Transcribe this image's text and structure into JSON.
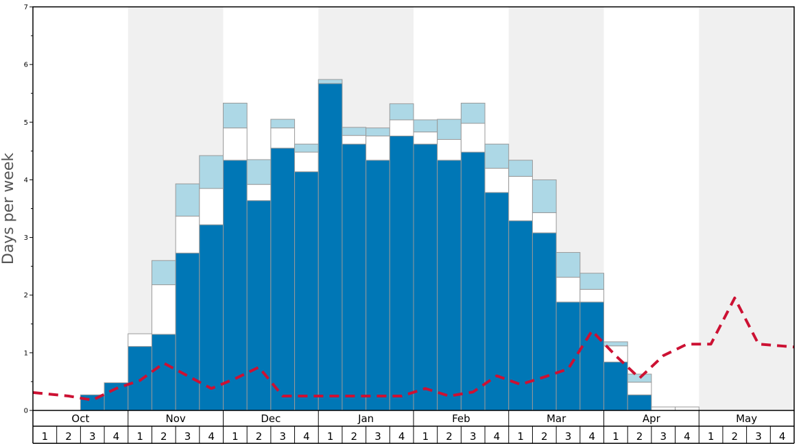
{
  "chart_data": {
    "type": "bar",
    "title": "",
    "ylabel": "Days per week",
    "xlabel": "",
    "ylim": [
      0,
      7
    ],
    "yticks": [
      0,
      1,
      2,
      3,
      4,
      5,
      6,
      7
    ],
    "stacked": true,
    "months": [
      "Oct",
      "Nov",
      "Dec",
      "Jan",
      "Feb",
      "Mar",
      "Apr",
      "May"
    ],
    "weeks": [
      "1",
      "2",
      "3",
      "4"
    ],
    "shaded_months": [
      "Nov",
      "Jan",
      "Mar",
      "May"
    ],
    "series": [
      {
        "name": "",
        "color": "#0077b6",
        "values": [
          0,
          0,
          0.27,
          0.48,
          1.11,
          1.32,
          2.73,
          3.22,
          4.34,
          3.64,
          4.55,
          4.14,
          5.67,
          4.62,
          4.34,
          4.76,
          4.62,
          4.34,
          4.48,
          3.78,
          3.29,
          3.08,
          1.88,
          1.88,
          0.84,
          0.27,
          0,
          0,
          0,
          0,
          0,
          0
        ]
      },
      {
        "name": "",
        "color": "#ffffff",
        "values": [
          0,
          0,
          0,
          0,
          0.22,
          0.86,
          0.64,
          0.63,
          0.56,
          0.28,
          0.35,
          0.34,
          0,
          0.15,
          0.42,
          0.28,
          0.21,
          0.36,
          0.5,
          0.42,
          0.77,
          0.35,
          0.43,
          0.22,
          0.28,
          0.22,
          0.06,
          0.06,
          0,
          0,
          0,
          0
        ]
      },
      {
        "name": "",
        "color": "#add8e6",
        "values": [
          0,
          0,
          0,
          0,
          0,
          0.42,
          0.56,
          0.57,
          0.43,
          0.43,
          0.15,
          0.14,
          0.07,
          0.14,
          0.14,
          0.28,
          0.21,
          0.35,
          0.35,
          0.42,
          0.28,
          0.57,
          0.43,
          0.28,
          0.07,
          0.14,
          0,
          0,
          0,
          0,
          0,
          0
        ]
      }
    ],
    "line": {
      "name": "",
      "color": "#cc1133",
      "style": "dashed",
      "values": [
        0.31,
        0.25,
        0.18,
        0.38,
        0.52,
        0.82,
        0.6,
        0.38,
        0.55,
        0.75,
        0.25,
        0.25,
        0.25,
        0.25,
        0.25,
        0.25,
        0.38,
        0.25,
        0.32,
        0.6,
        0.45,
        0.58,
        0.72,
        1.38,
        0.95,
        0.56,
        0.95,
        1.15,
        1.15,
        1.95,
        1.15,
        1.1
      ]
    }
  }
}
